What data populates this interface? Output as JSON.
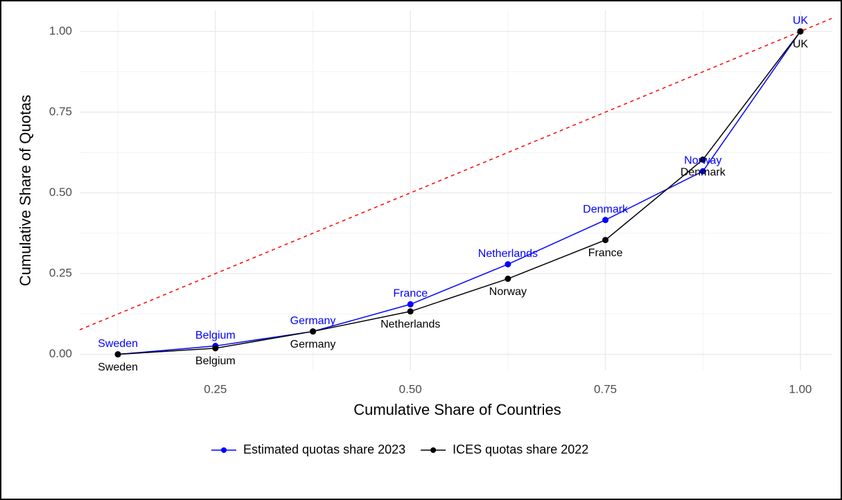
{
  "chart_data": {
    "type": "line",
    "x_label": "Cumulative Share of Countries",
    "y_label": "Cumulative Share of Quotas",
    "x": [
      0.125,
      0.25,
      0.375,
      0.5,
      0.625,
      0.75,
      0.875,
      1.0
    ],
    "series": [
      {
        "name": "Estimated quotas share 2023",
        "color": "#0000ff",
        "values": [
          0.0,
          0.026,
          0.071,
          0.155,
          0.279,
          0.416,
          0.567,
          1.0
        ],
        "labels": [
          "Sweden",
          "Belgium",
          "Germany",
          "France",
          "Netherlands",
          "Denmark",
          "Norway",
          "UK"
        ]
      },
      {
        "name": "ICES quotas share 2022",
        "color": "#000000",
        "values": [
          0.0,
          0.019,
          0.071,
          0.133,
          0.234,
          0.354,
          0.603,
          1.0
        ],
        "labels": [
          "Sweden",
          "Belgium",
          "Germany",
          "Netherlands",
          "Norway",
          "France",
          "Denmark",
          "UK"
        ]
      }
    ],
    "xlim": [
      0.076,
      1.04
    ],
    "ylim": [
      -0.05,
      1.065
    ],
    "xticks": [
      {
        "value": 0.25,
        "label": "0.25"
      },
      {
        "value": 0.5,
        "label": "0.50"
      },
      {
        "value": 0.75,
        "label": "0.75"
      },
      {
        "value": 1.0,
        "label": "1.00"
      }
    ],
    "yticks": [
      {
        "value": 0.0,
        "label": "0.00"
      },
      {
        "value": 0.25,
        "label": "0.25"
      },
      {
        "value": 0.5,
        "label": "0.50"
      },
      {
        "value": 0.75,
        "label": "0.75"
      },
      {
        "value": 1.0,
        "label": "1.00"
      }
    ],
    "grid": true,
    "legend": "bottom"
  }
}
